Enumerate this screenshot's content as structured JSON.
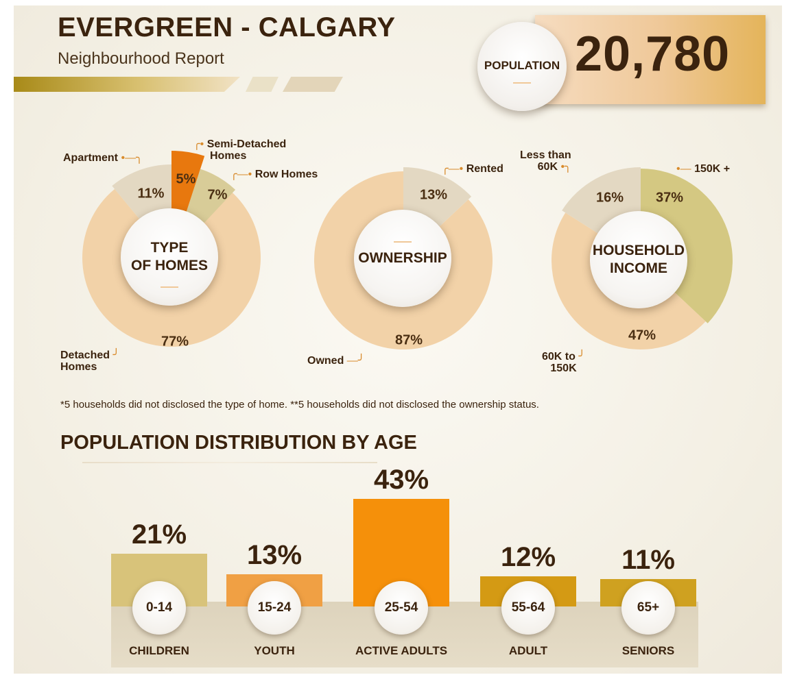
{
  "header": {
    "title": "EVERGREEN - CALGARY",
    "subtitle": "Neighbourhood Report"
  },
  "population": {
    "label": "POPULATION",
    "value": "20,780"
  },
  "donuts": {
    "type_of_homes": {
      "center_line1": "TYPE",
      "center_line2": "OF HOMES",
      "labels": {
        "apartment": "Apartment",
        "semi_line1": "Semi-Detached",
        "semi_line2": "Homes",
        "row": "Row Homes",
        "detached_line1": "Detached",
        "detached_line2": "Homes"
      },
      "percents": {
        "apartment": "11%",
        "semi": "5%",
        "row": "7%",
        "detached": "77%"
      }
    },
    "ownership": {
      "center": "OWNERSHIP",
      "labels": {
        "rented": "Rented",
        "owned": "Owned"
      },
      "percents": {
        "rented": "13%",
        "owned": "87%"
      }
    },
    "household_income": {
      "center_line1": "HOUSEHOLD",
      "center_line2": "INCOME",
      "labels": {
        "less_line1": "Less than",
        "less_line2": "60K",
        "high": "150K +",
        "mid_line1": "60K to",
        "mid_line2": "150K"
      },
      "percents": {
        "less": "16%",
        "high": "37%",
        "mid": "47%"
      }
    }
  },
  "footnote": "*5 households did not disclosed the type of home.  **5 households did not disclosed the ownership status.",
  "age_section": {
    "title": "POPULATION DISTRIBUTION BY AGE"
  },
  "chart_data": [
    {
      "type": "pie",
      "name": "TYPE OF HOMES",
      "categories": [
        "Detached Homes",
        "Apartment",
        "Semi-Detached Homes",
        "Row Homes"
      ],
      "values": [
        77,
        11,
        5,
        7
      ]
    },
    {
      "type": "pie",
      "name": "OWNERSHIP",
      "categories": [
        "Owned",
        "Rented"
      ],
      "values": [
        87,
        13
      ]
    },
    {
      "type": "pie",
      "name": "HOUSEHOLD INCOME",
      "categories": [
        "60K to 150K",
        "Less than 60K",
        "150K +"
      ],
      "values": [
        47,
        16,
        37
      ]
    },
    {
      "type": "bar",
      "title": "POPULATION DISTRIBUTION BY AGE",
      "categories": [
        "0-14",
        "15-24",
        "25-54",
        "55-64",
        "65+"
      ],
      "groups": [
        "CHILDREN",
        "YOUTH",
        "ACTIVE ADULTS",
        "ADULT",
        "SENIORS"
      ],
      "values": [
        21,
        13,
        43,
        12,
        11
      ],
      "labels": [
        "21%",
        "13%",
        "43%",
        "12%",
        "11%"
      ]
    }
  ],
  "colors": {
    "dark_text": "#3b230e",
    "detached": "#f2d2a8",
    "owned": "#f2d2a8",
    "mid_income": "#f2d2a8",
    "apartment": "#e3d8c2",
    "semi": "#e8780e",
    "row": "#d8cc98",
    "rented": "#e3d8c2",
    "less_income": "#e3d8c2",
    "high_income": "#d4c882",
    "bar_children": "#d8c37a",
    "bar_youth": "#f0a044",
    "bar_active": "#f5900a",
    "bar_adult": "#d49a14",
    "bar_seniors": "#cfa120"
  }
}
